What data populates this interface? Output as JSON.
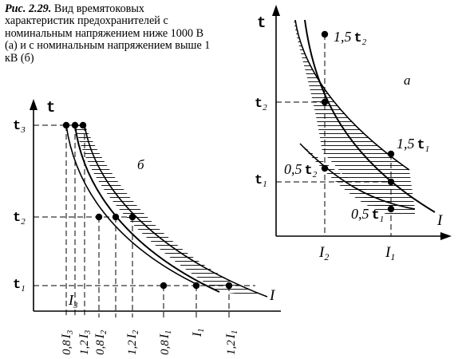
{
  "caption": {
    "figure_label": "Рис. 2.29.",
    "text": "Вид времятоковых характеристик предохранителей с номинальным напряжением ниже 1000 В (а) и с номинальным напряжением выше 1 кВ (б)"
  },
  "panel_a": {
    "panel_label": "а",
    "axis_t": "t",
    "axis_I": "I",
    "time_labels": {
      "t2_axis": {
        "sym": "t",
        "sub": "2"
      },
      "t1_axis": {
        "sym": "t",
        "sub": "1"
      },
      "upper_t2": {
        "coef": "1,5",
        "sym": "t",
        "sub": "2"
      },
      "upper_t1": {
        "coef": "1,5",
        "sym": "t",
        "sub": "1"
      },
      "lower_t2": {
        "coef": "0,5",
        "sym": "t",
        "sub": "2"
      },
      "lower_t1": {
        "coef": "0,5",
        "sym": "t",
        "sub": "1"
      }
    },
    "current_labels": {
      "I2": {
        "sym": "I",
        "sub": "2"
      },
      "I1": {
        "sym": "I",
        "sub": "1"
      }
    }
  },
  "panel_b": {
    "panel_label": "б",
    "axis_t": "t",
    "axis_I": "I",
    "time_labels": [
      {
        "sym": "t",
        "sub": "3"
      },
      {
        "sym": "t",
        "sub": "2"
      },
      {
        "sym": "t",
        "sub": "1"
      }
    ],
    "inner_label": {
      "sym": "I",
      "sub": "3"
    },
    "current_ticks": [
      {
        "coef": "0,8",
        "sym": "I",
        "sub": "3"
      },
      {
        "coef": "1,2",
        "sym": "I",
        "sub": "3"
      },
      {
        "coef": "0,8",
        "sym": "I",
        "sub": "2"
      },
      {
        "coef": "1,2",
        "sym": "I",
        "sub": "2"
      },
      {
        "coef": "0,8",
        "sym": "I",
        "sub": "1"
      },
      {
        "sym": "I",
        "sub": "1"
      },
      {
        "coef": "1,2",
        "sym": "I",
        "sub": "1"
      }
    ]
  }
}
